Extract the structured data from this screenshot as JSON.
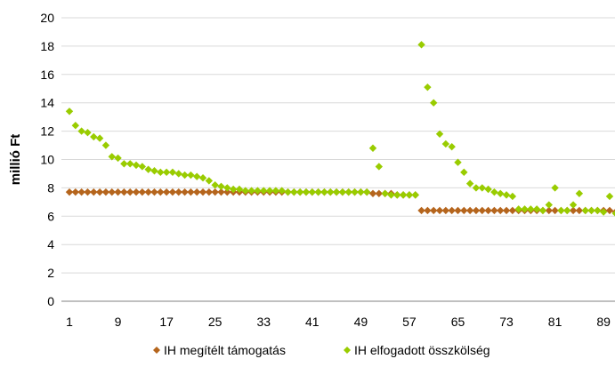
{
  "chart_data": {
    "type": "scatter",
    "title": "",
    "xlabel": "",
    "ylabel": "millió Ft",
    "xlim": [
      1,
      92
    ],
    "ylim": [
      0,
      20
    ],
    "yticks": [
      0,
      2,
      4,
      6,
      8,
      10,
      12,
      14,
      16,
      18,
      20
    ],
    "xticks": [
      1,
      9,
      17,
      25,
      33,
      41,
      49,
      57,
      65,
      73,
      81,
      89
    ],
    "grid": "horizontal",
    "legend_position": "bottom",
    "series": [
      {
        "name": "IH megítélt támogatás",
        "color": "#b5651d",
        "marker": "diamond",
        "x": [
          1,
          2,
          3,
          4,
          5,
          6,
          7,
          8,
          9,
          10,
          11,
          12,
          13,
          14,
          15,
          16,
          17,
          18,
          19,
          20,
          21,
          22,
          23,
          24,
          25,
          26,
          27,
          28,
          29,
          30,
          31,
          32,
          33,
          34,
          35,
          36,
          37,
          38,
          39,
          40,
          41,
          42,
          43,
          44,
          45,
          46,
          47,
          48,
          49,
          50,
          51,
          52,
          53,
          54,
          55,
          56,
          57,
          58,
          59,
          60,
          61,
          62,
          63,
          64,
          65,
          66,
          67,
          68,
          69,
          70,
          71,
          72,
          73,
          74,
          75,
          76,
          77,
          78,
          79,
          80,
          81,
          82,
          83,
          84,
          85,
          86,
          87,
          88,
          89,
          90,
          91,
          92
        ],
        "y": [
          7.7,
          7.7,
          7.7,
          7.7,
          7.7,
          7.7,
          7.7,
          7.7,
          7.7,
          7.7,
          7.7,
          7.7,
          7.7,
          7.7,
          7.7,
          7.7,
          7.7,
          7.7,
          7.7,
          7.7,
          7.7,
          7.7,
          7.7,
          7.7,
          7.7,
          7.7,
          7.7,
          7.7,
          7.7,
          7.7,
          7.7,
          7.7,
          7.7,
          7.7,
          7.7,
          7.7,
          7.7,
          7.7,
          7.7,
          7.7,
          7.7,
          7.7,
          7.7,
          7.7,
          7.7,
          7.7,
          7.7,
          7.7,
          7.7,
          7.7,
          7.6,
          7.6,
          7.6,
          7.6,
          7.5,
          7.5,
          7.5,
          7.5,
          6.4,
          6.4,
          6.4,
          6.4,
          6.4,
          6.4,
          6.4,
          6.4,
          6.4,
          6.4,
          6.4,
          6.4,
          6.4,
          6.4,
          6.4,
          6.4,
          6.4,
          6.4,
          6.4,
          6.4,
          6.4,
          6.4,
          6.4,
          6.4,
          6.4,
          6.4,
          6.4,
          6.4,
          6.4,
          6.4,
          6.4,
          6.4,
          6.3,
          6.0
        ]
      },
      {
        "name": "IH elfogadott összkölség",
        "color": "#99cc00",
        "marker": "diamond",
        "x": [
          1,
          2,
          3,
          4,
          5,
          6,
          7,
          8,
          9,
          10,
          11,
          12,
          13,
          14,
          15,
          16,
          17,
          18,
          19,
          20,
          21,
          22,
          23,
          24,
          25,
          26,
          27,
          28,
          29,
          30,
          31,
          32,
          33,
          34,
          35,
          36,
          37,
          38,
          39,
          40,
          41,
          42,
          43,
          44,
          45,
          46,
          47,
          48,
          49,
          50,
          51,
          52,
          53,
          54,
          55,
          56,
          57,
          58,
          59,
          60,
          61,
          62,
          63,
          64,
          65,
          66,
          67,
          68,
          69,
          70,
          71,
          72,
          73,
          74,
          75,
          76,
          77,
          78,
          79,
          80,
          81,
          82,
          83,
          84,
          85,
          86,
          87,
          88,
          89,
          90,
          91,
          92
        ],
        "y": [
          13.4,
          12.4,
          12.0,
          11.9,
          11.6,
          11.5,
          11.0,
          10.2,
          10.1,
          9.7,
          9.7,
          9.6,
          9.5,
          9.3,
          9.2,
          9.1,
          9.1,
          9.1,
          9.0,
          8.9,
          8.9,
          8.8,
          8.7,
          8.5,
          8.2,
          8.1,
          8.0,
          7.9,
          7.9,
          7.8,
          7.8,
          7.8,
          7.8,
          7.8,
          7.8,
          7.8,
          7.7,
          7.7,
          7.7,
          7.7,
          7.7,
          7.7,
          7.7,
          7.7,
          7.7,
          7.7,
          7.7,
          7.7,
          7.7,
          7.7,
          10.8,
          9.5,
          7.6,
          7.5,
          7.5,
          7.5,
          7.5,
          7.5,
          18.1,
          15.1,
          14.0,
          11.8,
          11.1,
          10.9,
          9.8,
          9.1,
          8.3,
          8.0,
          8.0,
          7.9,
          7.7,
          7.6,
          7.5,
          7.4,
          6.5,
          6.5,
          6.5,
          6.5,
          6.4,
          6.8,
          8.0,
          6.4,
          6.4,
          6.8,
          7.6,
          6.4,
          6.4,
          6.4,
          6.3,
          7.4,
          6.2,
          7.3
        ]
      }
    ]
  }
}
